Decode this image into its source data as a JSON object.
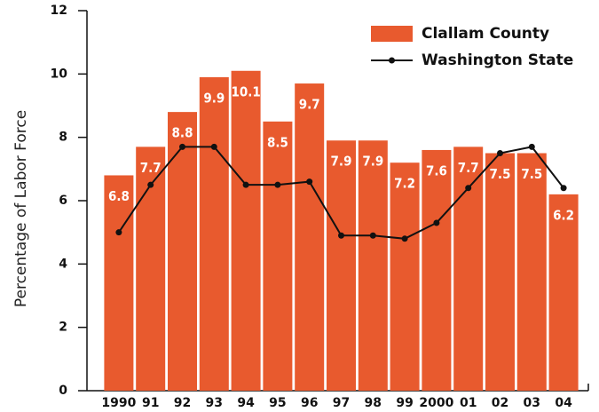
{
  "chart_data": {
    "type": "bar",
    "categories": [
      "1990",
      "91",
      "92",
      "93",
      "94",
      "95",
      "96",
      "97",
      "98",
      "99",
      "2000",
      "01",
      "02",
      "03",
      "04"
    ],
    "series": [
      {
        "name": "Clallam County",
        "color": "#e85a2e",
        "type": "bar",
        "values": [
          6.8,
          7.7,
          8.8,
          9.9,
          10.1,
          8.5,
          9.7,
          7.9,
          7.9,
          7.2,
          7.6,
          7.7,
          7.5,
          7.5,
          6.2
        ]
      },
      {
        "name": "Washington State",
        "color": "#111111",
        "type": "line",
        "values": [
          5.0,
          6.5,
          7.7,
          7.7,
          6.5,
          6.5,
          6.6,
          4.9,
          4.9,
          4.8,
          5.3,
          6.4,
          7.5,
          7.7,
          6.4
        ]
      }
    ],
    "y_label": "Percentage of Labor Force",
    "ylim": [
      0,
      12
    ],
    "yticks": [
      0,
      2,
      4,
      6,
      8,
      10,
      12
    ],
    "legend": "top-right"
  }
}
